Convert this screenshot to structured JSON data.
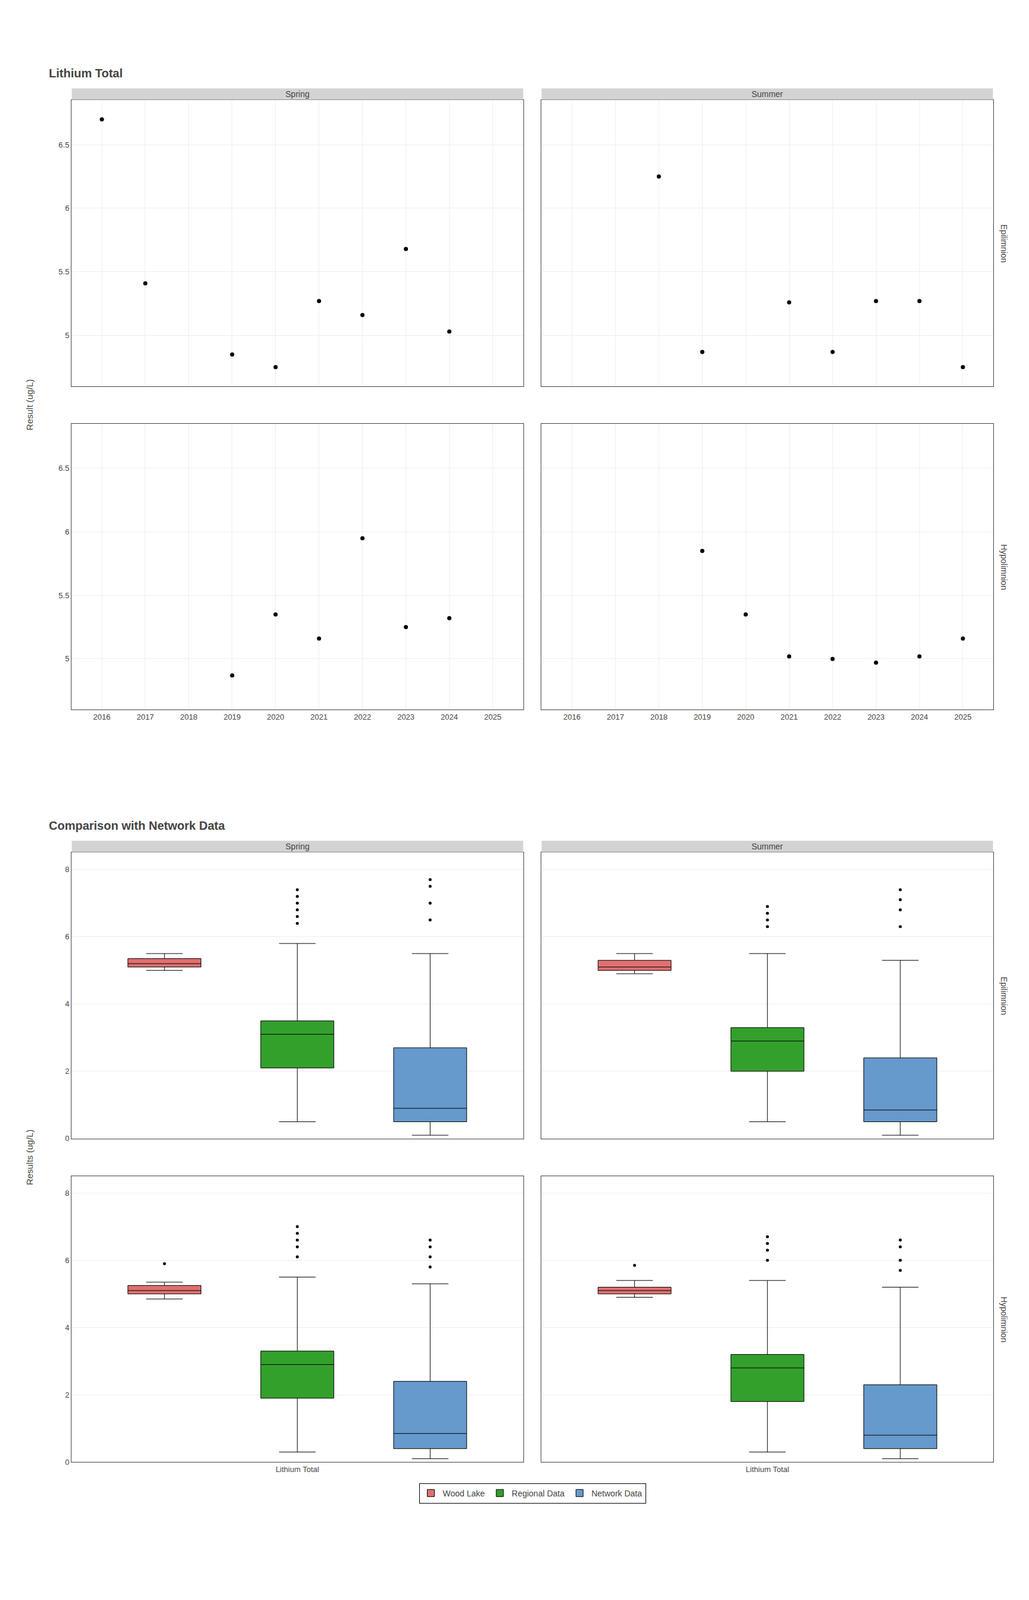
{
  "chart_data": [
    {
      "type": "scatter",
      "title": "Lithium Total",
      "ylabel": "Result (ug/L)",
      "columns": [
        "Spring",
        "Summer"
      ],
      "rows": [
        "Epilimnion",
        "Hypolimnion"
      ],
      "color": "black",
      "xlim": [
        2015.3,
        2025.7
      ],
      "xticks": [
        2016,
        2017,
        2018,
        2019,
        2020,
        2021,
        2022,
        2023,
        2024,
        2025
      ],
      "ylim": [
        4.6,
        6.85
      ],
      "yticks": [
        5,
        5.5,
        6,
        6.5
      ],
      "grid": true,
      "panels": [
        {
          "x": [
            2016,
            2017,
            2019,
            2020,
            2021,
            2022,
            2023,
            2024
          ],
          "values": [
            6.7,
            5.41,
            4.85,
            4.75,
            5.27,
            5.16,
            5.68,
            5.03
          ]
        },
        {
          "x": [
            2018,
            2019,
            2021,
            2022,
            2023,
            2024,
            2025
          ],
          "values": [
            6.25,
            4.87,
            5.26,
            4.87,
            5.27,
            5.27,
            4.75
          ]
        },
        {
          "x": [
            2019,
            2020,
            2021,
            2022,
            2023,
            2024
          ],
          "values": [
            4.87,
            5.35,
            5.16,
            5.95,
            5.25,
            5.32
          ]
        },
        {
          "x": [
            2019,
            2020,
            2021,
            2022,
            2023,
            2024,
            2025
          ],
          "values": [
            5.85,
            5.35,
            5.02,
            5.0,
            4.97,
            5.02,
            5.16
          ]
        }
      ]
    },
    {
      "type": "box",
      "title": "Comparison with Network Data",
      "ylabel": "Results (ug/L)",
      "columns": [
        "Spring",
        "Summer"
      ],
      "rows": [
        "Epilimnion",
        "Hypolimnion"
      ],
      "categories": [
        "Lithium Total"
      ],
      "ylim": [
        0,
        8.5
      ],
      "yticks": [
        0,
        2,
        4,
        6,
        8
      ],
      "grid": "y",
      "legend": "bottom",
      "series": [
        {
          "name": "Wood Lake",
          "color": "#E07070"
        },
        {
          "name": "Regional Data",
          "color": "#33A02C"
        },
        {
          "name": "Network Data",
          "color": "#6699CC"
        }
      ],
      "panels": [
        {
          "boxes": [
            {
              "med": 5.2,
              "q1": 5.1,
              "q3": 5.35,
              "whislo": 5.0,
              "whishi": 5.5,
              "fliers": []
            },
            {
              "med": 3.1,
              "q1": 2.1,
              "q3": 3.5,
              "whislo": 0.5,
              "whishi": 5.8,
              "fliers": [
                6.4,
                6.6,
                6.8,
                7.0,
                7.2,
                7.4
              ]
            },
            {
              "med": 0.9,
              "q1": 0.5,
              "q3": 2.7,
              "whislo": 0.1,
              "whishi": 5.5,
              "fliers": [
                6.5,
                7.0,
                7.5,
                7.7
              ]
            }
          ]
        },
        {
          "boxes": [
            {
              "med": 5.1,
              "q1": 5.0,
              "q3": 5.3,
              "whislo": 4.9,
              "whishi": 5.5,
              "fliers": []
            },
            {
              "med": 2.9,
              "q1": 2.0,
              "q3": 3.3,
              "whislo": 0.5,
              "whishi": 5.5,
              "fliers": [
                6.3,
                6.5,
                6.7,
                6.9
              ]
            },
            {
              "med": 0.85,
              "q1": 0.5,
              "q3": 2.4,
              "whislo": 0.1,
              "whishi": 5.3,
              "fliers": [
                6.3,
                6.8,
                7.1,
                7.4
              ]
            }
          ]
        },
        {
          "boxes": [
            {
              "med": 5.1,
              "q1": 5.0,
              "q3": 5.25,
              "whislo": 4.85,
              "whishi": 5.35,
              "fliers": [
                5.9
              ]
            },
            {
              "med": 2.9,
              "q1": 1.9,
              "q3": 3.3,
              "whislo": 0.3,
              "whishi": 5.5,
              "fliers": [
                6.1,
                6.4,
                6.6,
                6.8,
                7.0
              ]
            },
            {
              "med": 0.85,
              "q1": 0.4,
              "q3": 2.4,
              "whislo": 0.1,
              "whishi": 5.3,
              "fliers": [
                5.8,
                6.1,
                6.4,
                6.6
              ]
            }
          ]
        },
        {
          "boxes": [
            {
              "med": 5.1,
              "q1": 5.0,
              "q3": 5.2,
              "whislo": 4.9,
              "whishi": 5.4,
              "fliers": [
                5.85
              ]
            },
            {
              "med": 2.8,
              "q1": 1.8,
              "q3": 3.2,
              "whislo": 0.3,
              "whishi": 5.4,
              "fliers": [
                6.0,
                6.3,
                6.5,
                6.7
              ]
            },
            {
              "med": 0.8,
              "q1": 0.4,
              "q3": 2.3,
              "whislo": 0.1,
              "whishi": 5.2,
              "fliers": [
                5.7,
                6.0,
                6.4,
                6.6
              ]
            }
          ]
        }
      ]
    }
  ]
}
